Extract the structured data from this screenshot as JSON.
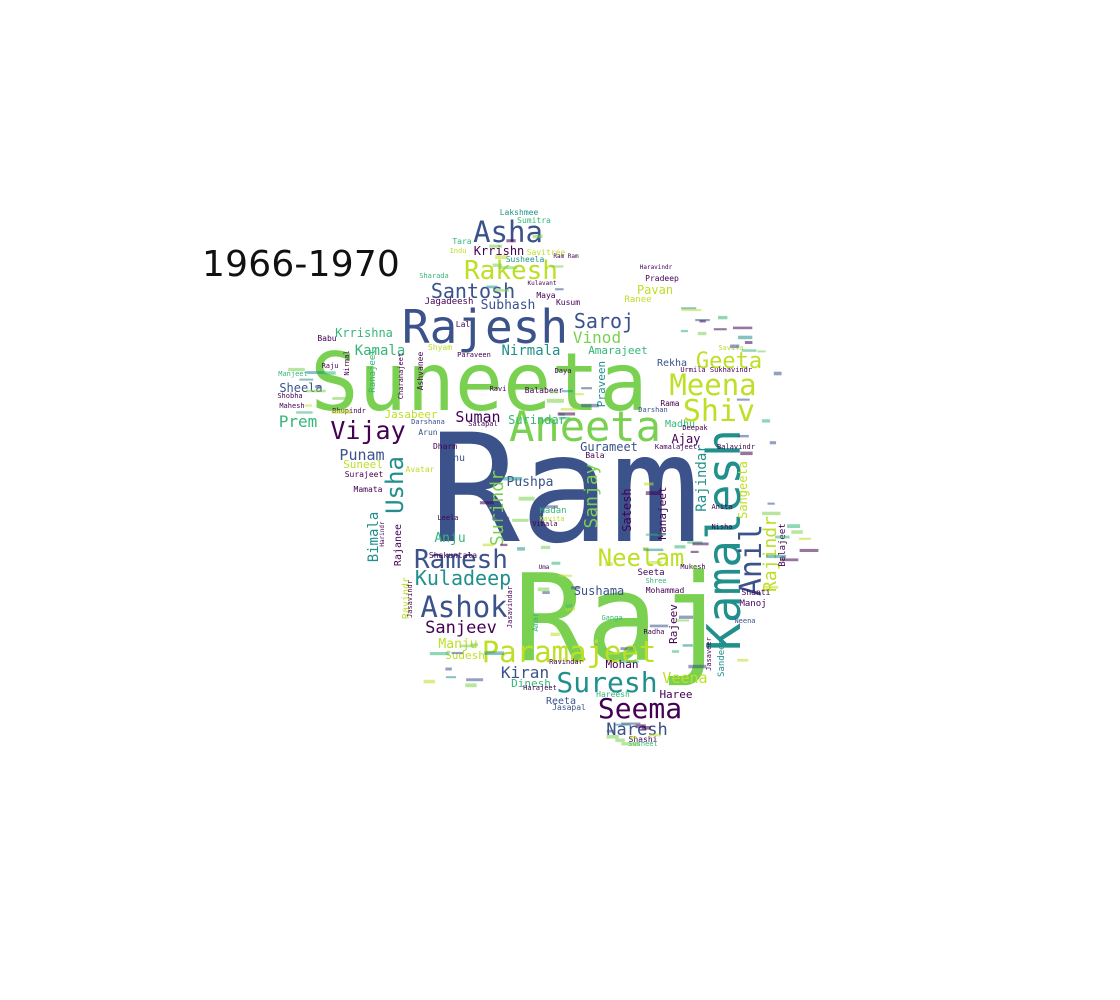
{
  "title": "1966-1970",
  "palette": {
    "dark_blue": "#3b528b",
    "teal": "#21908d",
    "light_green": "#7ad151",
    "yellow_green": "#bddf26",
    "purple": "#440154",
    "mid_green": "#35b779"
  },
  "words": [
    {
      "text": "Ram",
      "weight": 1.0
    },
    {
      "text": "Raj",
      "weight": 0.84
    },
    {
      "text": "Suneeta",
      "weight": 0.7
    },
    {
      "text": "Kamalesh",
      "weight": 0.56
    },
    {
      "text": "Rajesh",
      "weight": 0.46
    },
    {
      "text": "Aneeta",
      "weight": 0.42
    },
    {
      "text": "Anil",
      "weight": 0.34
    },
    {
      "text": "Shiv",
      "weight": 0.32
    },
    {
      "text": "Meena",
      "weight": 0.32
    },
    {
      "text": "Ashok",
      "weight": 0.3
    },
    {
      "text": "Asha",
      "weight": 0.3
    },
    {
      "text": "Seema",
      "weight": 0.3
    },
    {
      "text": "Suresh",
      "weight": 0.3
    },
    {
      "text": "Paramajeet",
      "weight": 0.3
    },
    {
      "text": "Rakesh",
      "weight": 0.28
    },
    {
      "text": "Ramesh",
      "weight": 0.28
    },
    {
      "text": "Neelam",
      "weight": 0.27
    },
    {
      "text": "Vijay",
      "weight": 0.26
    },
    {
      "text": "Usha",
      "weight": 0.26
    },
    {
      "text": "Geeta",
      "weight": 0.24
    },
    {
      "text": "Santosh",
      "weight": 0.21
    },
    {
      "text": "Saroj",
      "weight": 0.21
    },
    {
      "text": "Kuladeep",
      "weight": 0.21
    },
    {
      "text": "Surindr",
      "weight": 0.2
    },
    {
      "text": "Sanjay",
      "weight": 0.2
    },
    {
      "text": "Rajindr",
      "weight": 0.2
    },
    {
      "text": "Rajindar",
      "weight": 0.16
    },
    {
      "text": "Sanjeev",
      "weight": 0.18
    },
    {
      "text": "Naresh",
      "weight": 0.18
    },
    {
      "text": "Kiran",
      "weight": 0.17
    },
    {
      "text": "Vinod",
      "weight": 0.17
    },
    {
      "text": "Prem",
      "weight": 0.17
    },
    {
      "text": "Punam",
      "weight": 0.16
    },
    {
      "text": "Suman",
      "weight": 0.16
    },
    {
      "text": "Veena",
      "weight": 0.16
    },
    {
      "text": "Nirmala",
      "weight": 0.16
    },
    {
      "text": "Kamala",
      "weight": 0.15
    },
    {
      "text": "Pushpa",
      "weight": 0.15
    },
    {
      "text": "Bimala",
      "weight": 0.15
    },
    {
      "text": "Subhash",
      "weight": 0.15
    },
    {
      "text": "Manju",
      "weight": 0.14
    },
    {
      "text": "Anju",
      "weight": 0.14
    },
    {
      "text": "Sushama",
      "weight": 0.14
    },
    {
      "text": "Sheela",
      "weight": 0.14
    },
    {
      "text": "Krrishna",
      "weight": 0.14
    },
    {
      "text": "Krrishn",
      "weight": 0.14
    },
    {
      "text": "Pavan",
      "weight": 0.14
    },
    {
      "text": "Surindar",
      "weight": 0.14
    },
    {
      "text": "Sangeeta",
      "weight": 0.14
    },
    {
      "text": "Satesh",
      "weight": 0.14
    },
    {
      "text": "Gurameet",
      "weight": 0.13
    },
    {
      "text": "Ajay",
      "weight": 0.13
    },
    {
      "text": "Manajeet",
      "weight": 0.13
    },
    {
      "text": "Sudesh",
      "weight": 0.13
    },
    {
      "text": "Amarajeet",
      "weight": 0.13
    },
    {
      "text": "Praveen",
      "weight": 0.13
    },
    {
      "text": "Rajeev",
      "weight": 0.13
    },
    {
      "text": "Mohan",
      "weight": 0.12
    },
    {
      "text": "Haree",
      "weight": 0.12
    },
    {
      "text": "Dinesh",
      "weight": 0.12
    },
    {
      "text": "Rekha",
      "weight": 0.12
    },
    {
      "text": "Renu",
      "weight": 0.12
    },
    {
      "text": "Reeta",
      "weight": 0.12
    },
    {
      "text": "Madhu",
      "weight": 0.12
    },
    {
      "text": "Jasabeer",
      "weight": 0.12
    },
    {
      "text": "Lakshmee",
      "weight": 0.11
    },
    {
      "text": "Sumitra",
      "weight": 0.11
    },
    {
      "text": "Susheela",
      "weight": 0.11
    },
    {
      "text": "Savitree",
      "weight": 0.11
    },
    {
      "text": "Ranee",
      "weight": 0.11
    },
    {
      "text": "Maya",
      "weight": 0.11
    },
    {
      "text": "Kusum",
      "weight": 0.11
    },
    {
      "text": "Jagadeesh",
      "weight": 0.11
    },
    {
      "text": "Tara",
      "weight": 0.11
    },
    {
      "text": "Pradeep",
      "weight": 0.11
    },
    {
      "text": "Savita",
      "weight": 0.1
    },
    {
      "text": "Shyam",
      "weight": 0.1
    },
    {
      "text": "Lal",
      "weight": 0.1
    },
    {
      "text": "Babu",
      "weight": 0.1
    },
    {
      "text": "Raju",
      "weight": 0.1
    },
    {
      "text": "Shobha",
      "weight": 0.1
    },
    {
      "text": "Manjeet",
      "weight": 0.1
    },
    {
      "text": "Mahesh",
      "weight": 0.1
    },
    {
      "text": "Bhupindr",
      "weight": 0.1
    },
    {
      "text": "Arun",
      "weight": 0.11
    },
    {
      "text": "Satapal",
      "weight": 0.1
    },
    {
      "text": "Darshana",
      "weight": 0.1
    },
    {
      "text": "Avatar",
      "weight": 0.1
    },
    {
      "text": "Suneel",
      "weight": 0.12
    },
    {
      "text": "Surajeet",
      "weight": 0.1
    },
    {
      "text": "Mamata",
      "weight": 0.1
    },
    {
      "text": "Dharm",
      "weight": 0.1
    },
    {
      "text": "Leela",
      "weight": 0.1
    },
    {
      "text": "Madan",
      "weight": 0.11
    },
    {
      "text": "Kavita",
      "weight": 0.1
    },
    {
      "text": "Vimala",
      "weight": 0.1
    },
    {
      "text": "Uma",
      "weight": 0.1
    },
    {
      "text": "Seeta",
      "weight": 0.11
    },
    {
      "text": "Shree",
      "weight": 0.1
    },
    {
      "text": "Mohammad",
      "weight": 0.11
    },
    {
      "text": "Manoj",
      "weight": 0.11
    },
    {
      "text": "Shanti",
      "weight": 0.1
    },
    {
      "text": "Nisha",
      "weight": 0.1
    },
    {
      "text": "Mukesh",
      "weight": 0.1
    },
    {
      "text": "Anita",
      "weight": 0.1
    },
    {
      "text": "Deepak",
      "weight": 0.1
    },
    {
      "text": "Darshan",
      "weight": 0.1
    },
    {
      "text": "Balajeet",
      "weight": 0.11
    },
    {
      "text": "Balavindr",
      "weight": 0.1
    },
    {
      "text": "Sandeep",
      "weight": 0.11
    },
    {
      "text": "Jasaveer",
      "weight": 0.1
    },
    {
      "text": "Neena",
      "weight": 0.1
    },
    {
      "text": "Rama",
      "weight": 0.11
    },
    {
      "text": "Urmila",
      "weight": 0.1
    },
    {
      "text": "Sukhavindr",
      "weight": 0.1
    },
    {
      "text": "Kamalajeet",
      "weight": 0.1
    },
    {
      "text": "Bala",
      "weight": 0.1
    },
    {
      "text": "Ganga",
      "weight": 0.1
    },
    {
      "text": "Om",
      "weight": 0.11
    },
    {
      "text": "Radha",
      "weight": 0.1
    },
    {
      "text": "Harajeet",
      "weight": 0.1
    },
    {
      "text": "Ravindar",
      "weight": 0.1
    },
    {
      "text": "Jasapal",
      "weight": 0.11
    },
    {
      "text": "Hareesh",
      "weight": 0.11
    },
    {
      "text": "Shashi",
      "weight": 0.1
    },
    {
      "text": "Susheel",
      "weight": 0.1
    },
    {
      "text": "Ravindr",
      "weight": 0.11
    },
    {
      "text": "Rajanee",
      "weight": 0.11
    },
    {
      "text": "Ranajeet",
      "weight": 0.11
    },
    {
      "text": "Ashvanee",
      "weight": 0.1
    },
    {
      "text": "Charanajeet",
      "weight": 0.1
    },
    {
      "text": "Paraveen",
      "weight": 0.1
    },
    {
      "text": "Balabeer",
      "weight": 0.1
    },
    {
      "text": "Ravi",
      "weight": 0.1
    },
    {
      "text": "Daya",
      "weight": 0.1
    },
    {
      "text": "Shakuntala",
      "weight": 0.1
    },
    {
      "text": "Jasavindr",
      "weight": 0.1
    },
    {
      "text": "Jasavindar",
      "weight": 0.1
    },
    {
      "text": "Amar",
      "weight": 0.1
    },
    {
      "text": "Ram Ram",
      "weight": 0.08
    },
    {
      "text": "Kulavant",
      "weight": 0.08
    },
    {
      "text": "Indu",
      "weight": 0.08
    },
    {
      "text": "Sharada",
      "weight": 0.08
    },
    {
      "text": "Haravindr",
      "weight": 0.08
    },
    {
      "text": "Harindr",
      "weight": 0.08
    },
    {
      "text": "Nirmal",
      "weight": 0.08
    }
  ]
}
